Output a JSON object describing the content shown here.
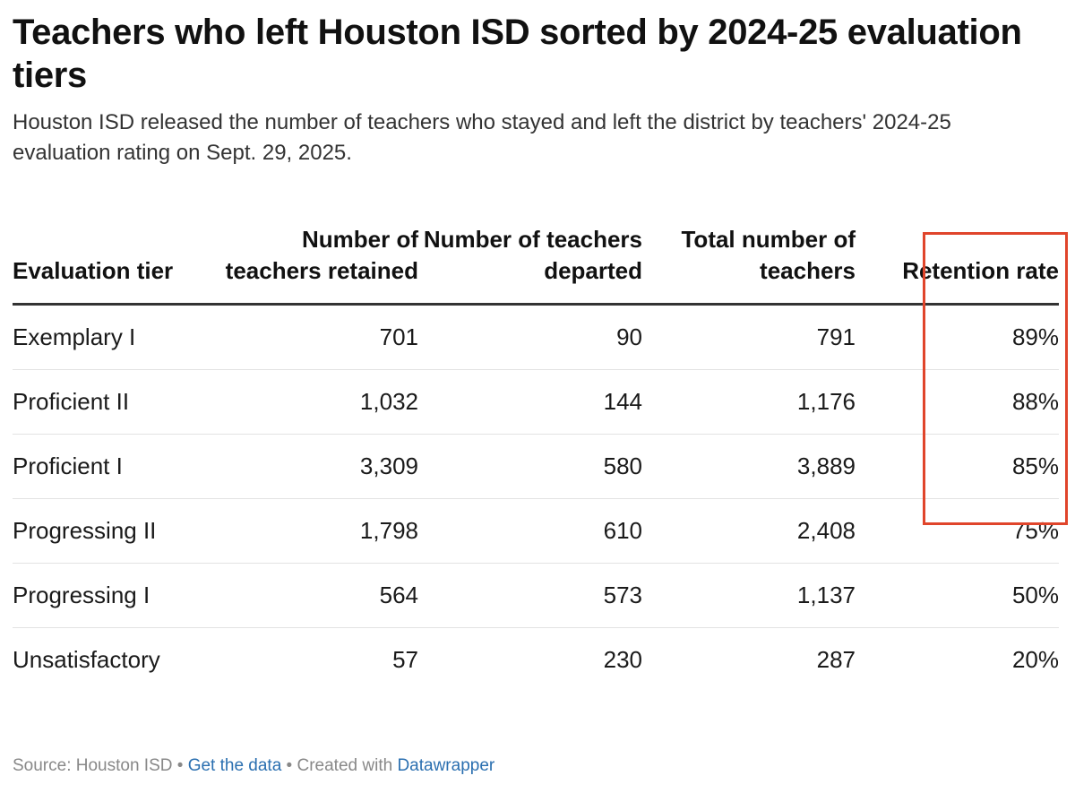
{
  "chart_data": {
    "type": "table",
    "title": "Teachers who left Houston ISD sorted by 2024-25 evaluation tiers",
    "subtitle": "Houston ISD released the number of teachers who stayed and left the district by teachers' 2024-25 evaluation rating on Sept. 29, 2025.",
    "columns": [
      "Evaluation tier",
      "Number of teachers retained",
      "Number of teachers departed",
      "Total number of teachers",
      "Retention rate"
    ],
    "rows": [
      [
        "Exemplary I",
        "701",
        "90",
        "791",
        "89%"
      ],
      [
        "Proficient II",
        "1,032",
        "144",
        "1,176",
        "88%"
      ],
      [
        "Proficient I",
        "3,309",
        "580",
        "3,889",
        "85%"
      ],
      [
        "Progressing II",
        "1,798",
        "610",
        "2,408",
        "75%"
      ],
      [
        "Progressing I",
        "564",
        "573",
        "1,137",
        "50%"
      ],
      [
        "Unsatisfactory",
        "57",
        "230",
        "287",
        "20%"
      ]
    ],
    "highlight": {
      "column": "Retention rate",
      "rows": [
        "Exemplary I",
        "Proficient II",
        "Proficient I"
      ],
      "color": "#e0452b"
    }
  },
  "footer": {
    "source": "Source: Houston ISD",
    "separator": " • ",
    "get_data": "Get the data",
    "created_with": "Created with ",
    "tool": "Datawrapper"
  }
}
